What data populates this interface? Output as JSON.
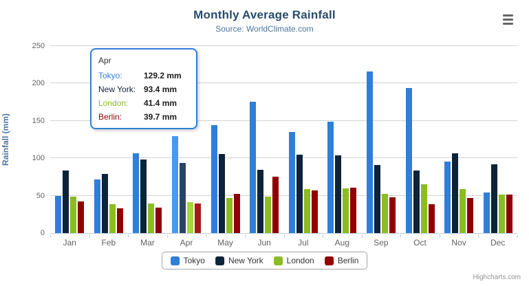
{
  "chart": {
    "title": "Monthly Average Rainfall",
    "subtitle": "Source: WorldClimate.com",
    "y_axis_title": "Rainfall (mm)",
    "credits": "Highcharts.com"
  },
  "chart_data": {
    "type": "bar",
    "title": "Monthly Average Rainfall",
    "subtitle": "Source: WorldClimate.com",
    "xlabel": "",
    "ylabel": "Rainfall (mm)",
    "ylim": [
      0,
      250
    ],
    "ytick_interval": 50,
    "grid": true,
    "legend_position": "bottom",
    "hovered_category": "Apr",
    "categories": [
      "Jan",
      "Feb",
      "Mar",
      "Apr",
      "May",
      "Jun",
      "Jul",
      "Aug",
      "Sep",
      "Oct",
      "Nov",
      "Dec"
    ],
    "series": [
      {
        "name": "Tokyo",
        "color": "#2f7ed8",
        "hover_color": "#4998f2",
        "values": [
          49.9,
          71.5,
          106.4,
          129.2,
          144.0,
          176.0,
          135.6,
          148.5,
          216.4,
          194.1,
          95.6,
          54.4
        ]
      },
      {
        "name": "New York",
        "color": "#0d233a",
        "hover_color": "#2d4360",
        "values": [
          83.6,
          78.8,
          98.5,
          93.4,
          106.0,
          84.5,
          105.0,
          104.3,
          91.2,
          83.5,
          106.6,
          92.3
        ]
      },
      {
        "name": "London",
        "color": "#8bbc21",
        "hover_color": "#a5d63b",
        "values": [
          48.9,
          38.8,
          39.3,
          41.4,
          47.0,
          48.3,
          59.0,
          59.6,
          52.4,
          65.2,
          59.3,
          51.2
        ]
      },
      {
        "name": "Berlin",
        "color": "#910000",
        "hover_color": "#ab1a1a",
        "values": [
          42.4,
          33.2,
          34.5,
          39.7,
          52.6,
          75.5,
          57.4,
          60.4,
          47.6,
          39.1,
          46.8,
          51.1
        ]
      }
    ]
  },
  "tooltip": {
    "header": "Apr",
    "border_color": "#2f7ed8",
    "rows": [
      {
        "name": "Tokyo:",
        "value": "129.2 mm",
        "color": "#2f7ed8"
      },
      {
        "name": "New York:",
        "value": "93.4 mm",
        "color": "#0d233a"
      },
      {
        "name": "London:",
        "value": "41.4 mm",
        "color": "#8bbc21"
      },
      {
        "name": "Berlin:",
        "value": "39.7 mm",
        "color": "#910000"
      }
    ]
  },
  "legend": {
    "items": [
      {
        "label": "Tokyo",
        "color": "#2f7ed8"
      },
      {
        "label": "New York",
        "color": "#0d233a"
      },
      {
        "label": "London",
        "color": "#8bbc21"
      },
      {
        "label": "Berlin",
        "color": "#910000"
      }
    ]
  }
}
